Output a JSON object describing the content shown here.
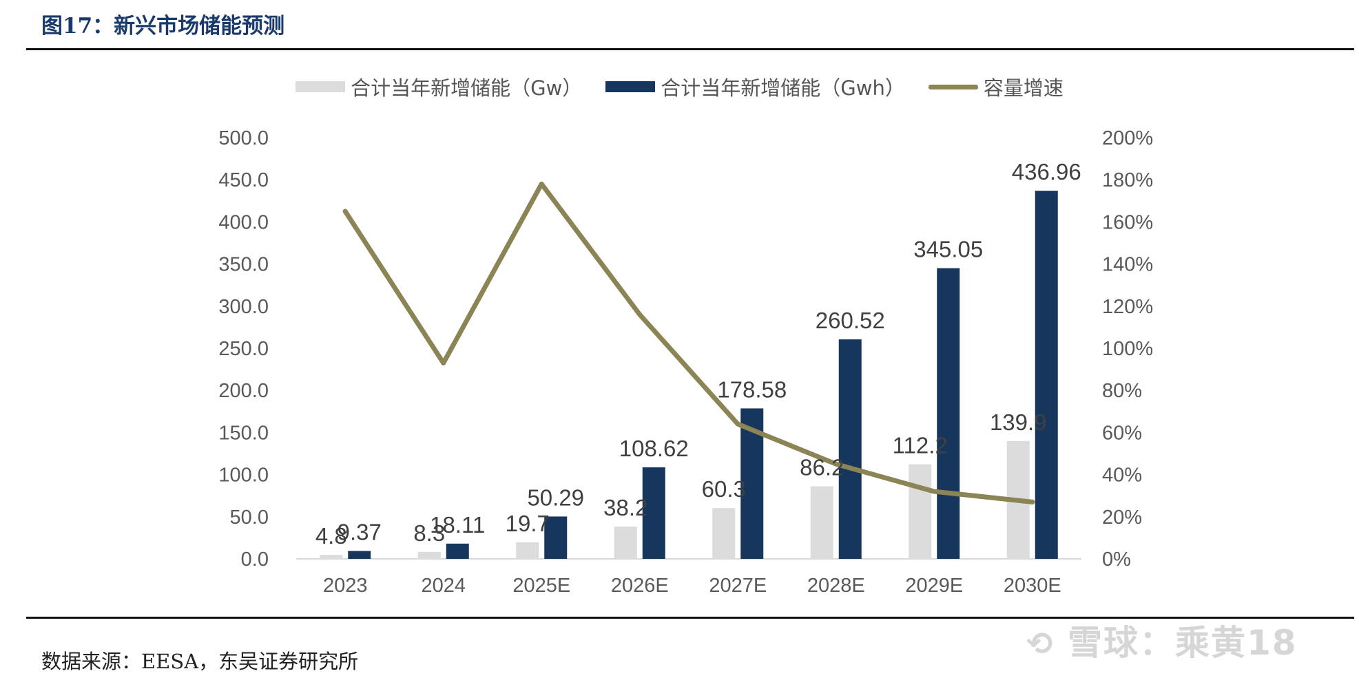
{
  "figure": {
    "title": "图17：新兴市场储能预测",
    "source": "数据来源：EESA，东吴证券研究所",
    "watermark_icon": "snowball-logo-icon",
    "watermark": "雪球：乘黄18"
  },
  "colors": {
    "gw": "#dcdcdc",
    "gwh": "#17365d",
    "growth": "#8b8455",
    "axis_text": "#595959",
    "label_text": "#404040",
    "title": "#1a3a6b"
  },
  "chart_data": {
    "type": "bar",
    "title": "",
    "categories": [
      "2023",
      "2024",
      "2025E",
      "2026E",
      "2027E",
      "2028E",
      "2029E",
      "2030E"
    ],
    "series": [
      {
        "name": "合计当年新增储能（Gw）",
        "type": "bar",
        "axis": "left",
        "values": [
          4.8,
          8.3,
          19.7,
          38.2,
          60.3,
          86.2,
          112.2,
          139.9
        ],
        "labels": [
          "4.8",
          "8.3",
          "19.7",
          "38.2",
          "60.3",
          "86.2",
          "112.2",
          "139.9"
        ]
      },
      {
        "name": "合计当年新增储能（Gwh）",
        "type": "bar",
        "axis": "left",
        "values": [
          9.37,
          18.11,
          50.29,
          108.62,
          178.58,
          260.52,
          345.05,
          436.96
        ],
        "labels": [
          "9.37",
          "18.11",
          "50.29",
          "108.62",
          "178.58",
          "260.52",
          "345.05",
          "436.96"
        ]
      },
      {
        "name": "容量增速",
        "type": "line",
        "axis": "right",
        "values": [
          1.65,
          0.93,
          1.78,
          1.16,
          0.64,
          0.45,
          0.32,
          0.27
        ]
      }
    ],
    "ylim": [
      0,
      500
    ],
    "yticks": [
      "0.0",
      "50.0",
      "100.0",
      "150.0",
      "200.0",
      "250.0",
      "300.0",
      "350.0",
      "400.0",
      "450.0",
      "500.0"
    ],
    "y2lim": [
      0,
      2
    ],
    "y2ticks": [
      "0%",
      "20%",
      "40%",
      "60%",
      "80%",
      "100%",
      "120%",
      "140%",
      "160%",
      "180%",
      "200%"
    ],
    "legend_position": "top",
    "grid": false,
    "xlabel": "",
    "ylabel": "",
    "y2label": ""
  }
}
